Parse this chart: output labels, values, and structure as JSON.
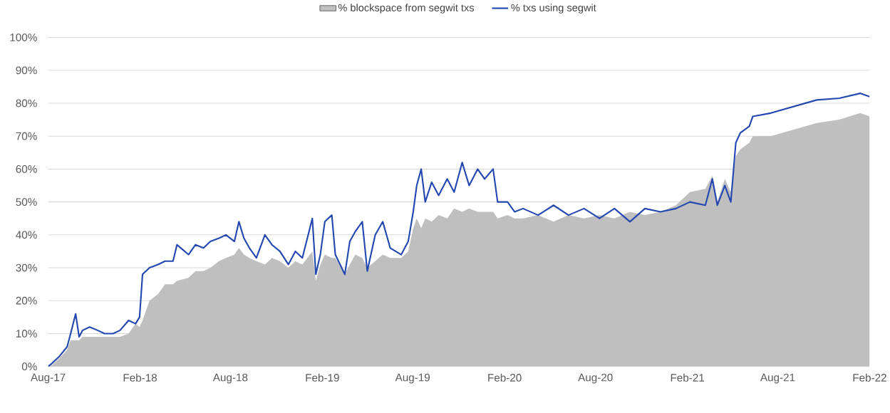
{
  "chart_data": {
    "type": "area",
    "x": [
      "2017-08-24",
      "2017-09-01",
      "2017-09-15",
      "2017-10-01",
      "2017-10-08",
      "2017-10-18",
      "2017-10-25",
      "2017-11-01",
      "2017-11-15",
      "2017-12-01",
      "2017-12-15",
      "2018-01-01",
      "2018-01-15",
      "2018-02-01",
      "2018-02-15",
      "2018-02-23",
      "2018-03-01",
      "2018-03-15",
      "2018-04-01",
      "2018-04-15",
      "2018-05-01",
      "2018-05-09",
      "2018-06-01",
      "2018-06-15",
      "2018-07-01",
      "2018-07-15",
      "2018-08-01",
      "2018-08-15",
      "2018-09-01",
      "2018-09-10",
      "2018-09-20",
      "2018-10-01",
      "2018-10-15",
      "2018-11-01",
      "2018-11-15",
      "2018-12-01",
      "2018-12-18",
      "2019-01-01",
      "2019-01-15",
      "2019-02-04",
      "2019-02-11",
      "2019-02-20",
      "2019-03-01",
      "2019-03-15",
      "2019-03-22",
      "2019-04-10",
      "2019-04-20",
      "2019-05-01",
      "2019-05-15",
      "2019-05-25",
      "2019-06-10",
      "2019-06-25",
      "2019-07-10",
      "2019-08-01",
      "2019-08-15",
      "2019-08-25",
      "2019-09-01",
      "2019-09-10",
      "2019-09-18",
      "2019-10-01",
      "2019-10-15",
      "2019-11-01",
      "2019-11-15",
      "2019-12-01",
      "2019-12-15",
      "2020-01-01",
      "2020-01-15",
      "2020-02-01",
      "2020-02-10",
      "2020-03-01",
      "2020-03-15",
      "2020-04-01",
      "2020-05-01",
      "2020-06-01",
      "2020-07-01",
      "2020-08-01",
      "2020-09-01",
      "2020-10-01",
      "2020-11-01",
      "2020-12-01",
      "2021-01-01",
      "2021-02-01",
      "2021-03-01",
      "2021-04-01",
      "2021-04-15",
      "2021-04-25",
      "2021-05-10",
      "2021-05-22",
      "2021-06-01",
      "2021-06-10",
      "2021-06-28",
      "2021-07-05",
      "2021-08-10",
      "2021-09-25",
      "2021-11-10",
      "2021-12-25",
      "2022-02-05",
      "2022-02-24"
    ],
    "series": [
      {
        "name": "% blockspace from segwit txs",
        "color": "#bfbfbf",
        "values": [
          0,
          0.5,
          2.5,
          5,
          8,
          8,
          8,
          9,
          9,
          9,
          9,
          9,
          9,
          10,
          13,
          12,
          14,
          20,
          22,
          25,
          25,
          26,
          27,
          29,
          29,
          30,
          32,
          33,
          34,
          36,
          34,
          33,
          32,
          31,
          33,
          32,
          30,
          32,
          31,
          35,
          26,
          31,
          34,
          33,
          33,
          28,
          31,
          34,
          33,
          30,
          32,
          34,
          33,
          33,
          35,
          42,
          45,
          42,
          45,
          44,
          46,
          45,
          48,
          47,
          48,
          47,
          47,
          47,
          45,
          46,
          45,
          45,
          46,
          44,
          46,
          45,
          46,
          45,
          47,
          46,
          47,
          49,
          53,
          54,
          58,
          50,
          57,
          53,
          64,
          66,
          68,
          70,
          70,
          72,
          74,
          75,
          77,
          76
        ]
      },
      {
        "name": "% txs using segwit",
        "type": "line",
        "color": "#2347b0",
        "values": [
          0,
          1,
          3,
          6,
          10,
          16,
          9,
          11,
          12,
          11,
          10,
          10,
          11,
          14,
          13,
          15,
          28,
          30,
          31,
          32,
          32,
          37,
          34,
          37,
          36,
          38,
          39,
          40,
          38,
          44,
          39,
          36,
          33,
          40,
          37,
          35,
          31,
          35,
          33,
          45,
          28,
          34,
          44,
          46,
          34,
          28,
          38,
          41,
          44,
          29,
          40,
          44,
          36,
          34,
          38,
          47,
          55,
          60,
          50,
          56,
          52,
          57,
          53,
          62,
          55,
          60,
          57,
          60,
          50,
          50,
          47,
          48,
          46,
          49,
          46,
          48,
          45,
          48,
          44,
          48,
          47,
          48,
          50,
          49,
          57,
          49,
          55,
          50,
          68,
          71,
          73,
          76,
          77,
          79,
          81,
          81.5,
          83,
          82
        ]
      }
    ],
    "xlim": [
      "2017-08-24",
      "2022-02-24"
    ],
    "xticks": [
      {
        "value": "2017-08-24",
        "label": "Aug-17"
      },
      {
        "value": "2018-02-24",
        "label": "Feb-18"
      },
      {
        "value": "2018-08-24",
        "label": "Aug-18"
      },
      {
        "value": "2019-02-24",
        "label": "Feb-19"
      },
      {
        "value": "2019-08-24",
        "label": "Aug-19"
      },
      {
        "value": "2020-02-24",
        "label": "Feb-20"
      },
      {
        "value": "2020-08-24",
        "label": "Aug-20"
      },
      {
        "value": "2021-02-24",
        "label": "Feb-21"
      },
      {
        "value": "2021-08-24",
        "label": "Aug-21"
      },
      {
        "value": "2022-02-24",
        "label": "Feb-22"
      }
    ],
    "ylim": [
      0,
      100
    ],
    "yticks": [
      {
        "value": 0,
        "label": "0%"
      },
      {
        "value": 10,
        "label": "10%"
      },
      {
        "value": 20,
        "label": "20%"
      },
      {
        "value": 30,
        "label": "30%"
      },
      {
        "value": 40,
        "label": "40%"
      },
      {
        "value": 50,
        "label": "50%"
      },
      {
        "value": 60,
        "label": "60%"
      },
      {
        "value": 70,
        "label": "70%"
      },
      {
        "value": 80,
        "label": "80%"
      },
      {
        "value": 90,
        "label": "90%"
      },
      {
        "value": 100,
        "label": "100%"
      }
    ],
    "grid": "y",
    "legend": "top"
  }
}
